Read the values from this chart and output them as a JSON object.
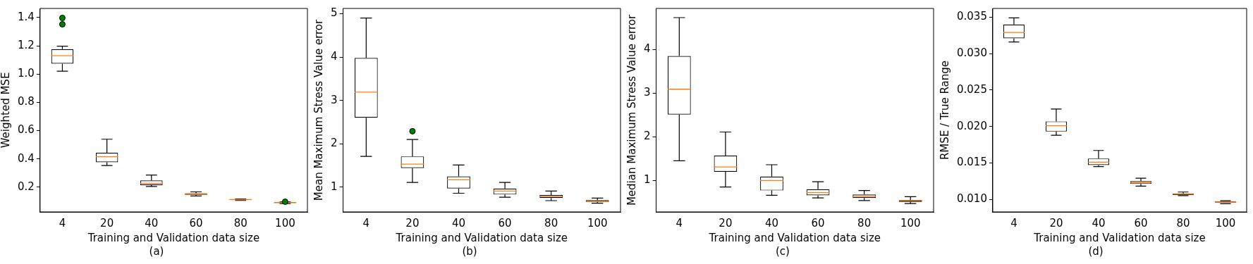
{
  "chart_data": [
    {
      "type": "box",
      "xlabel": "Training and Validation data size",
      "ylabel": "Weighted MSE",
      "annotations": [
        "(a)"
      ],
      "categories": [
        "4",
        "20",
        "40",
        "60",
        "80",
        "100"
      ],
      "ylim": [
        0.025,
        1.464
      ],
      "yticks": [
        {
          "value": 0.2,
          "label": "0.2"
        },
        {
          "value": 0.4,
          "label": "0.4"
        },
        {
          "value": 0.6,
          "label": "0.6"
        },
        {
          "value": 0.8,
          "label": "0.8"
        },
        {
          "value": 1.0,
          "label": "1.0"
        },
        {
          "value": 1.2,
          "label": "1.2"
        },
        {
          "value": 1.4,
          "label": "1.4"
        }
      ],
      "grid": false,
      "boxes": [
        {
          "low": 1.02,
          "q1": 1.073,
          "median": 1.13,
          "q3": 1.176,
          "high": 1.197,
          "outliers": [
            1.352,
            1.397
          ]
        },
        {
          "low": 0.353,
          "q1": 0.376,
          "median": 0.415,
          "q3": 0.443,
          "high": 0.539
        },
        {
          "low": 0.205,
          "q1": 0.214,
          "median": 0.227,
          "q3": 0.248,
          "high": 0.286
        },
        {
          "low": 0.138,
          "q1": 0.146,
          "median": 0.151,
          "q3": 0.157,
          "high": 0.167
        },
        {
          "low": 0.106,
          "q1": 0.108,
          "median": 0.113,
          "q3": 0.114,
          "high": 0.117
        },
        {
          "low": 0.084,
          "q1": 0.088,
          "median": 0.09,
          "q3": 0.094,
          "high": 0.095,
          "outliers": [
            0.097
          ]
        }
      ]
    },
    {
      "type": "box",
      "xlabel": "Training and Validation data size",
      "ylabel": "Mean Maximum Stress Value error",
      "annotations": [
        "(b)"
      ],
      "categories": [
        "4",
        "20",
        "40",
        "60",
        "80",
        "100"
      ],
      "ylim": [
        0.43,
        5.12
      ],
      "yticks": [
        1,
        2,
        3,
        4,
        5
      ],
      "grid": false,
      "boxes": [
        {
          "low": 1.71,
          "q1": 2.6,
          "median": 3.19,
          "q3": 3.98,
          "high": 4.9
        },
        {
          "low": 1.11,
          "q1": 1.44,
          "median": 1.53,
          "q3": 1.71,
          "high": 2.1,
          "outliers": [
            2.29
          ]
        },
        {
          "low": 0.86,
          "q1": 0.97,
          "median": 1.17,
          "q3": 1.25,
          "high": 1.51
        },
        {
          "low": 0.77,
          "q1": 0.83,
          "median": 0.91,
          "q3": 0.97,
          "high": 1.11
        },
        {
          "low": 0.69,
          "q1": 0.75,
          "median": 0.78,
          "q3": 0.82,
          "high": 0.91
        },
        {
          "low": 0.63,
          "q1": 0.66,
          "median": 0.67,
          "q3": 0.7,
          "high": 0.75
        }
      ]
    },
    {
      "type": "box",
      "xlabel": "Training and Validation data size",
      "ylabel": "Median Maximum Stress Value error",
      "annotations": [
        "(c)"
      ],
      "categories": [
        "4",
        "20",
        "40",
        "60",
        "80",
        "100"
      ],
      "ylim": [
        0.28,
        4.94
      ],
      "yticks": [
        1,
        2,
        3,
        4
      ],
      "grid": false,
      "boxes": [
        {
          "low": 1.45,
          "q1": 2.51,
          "median": 3.09,
          "q3": 3.85,
          "high": 4.73
        },
        {
          "low": 0.85,
          "q1": 1.2,
          "median": 1.31,
          "q3": 1.57,
          "high": 2.11
        },
        {
          "low": 0.66,
          "q1": 0.77,
          "median": 1.0,
          "q3": 1.09,
          "high": 1.36
        },
        {
          "low": 0.6,
          "q1": 0.66,
          "median": 0.72,
          "q3": 0.8,
          "high": 0.97
        },
        {
          "low": 0.54,
          "q1": 0.6,
          "median": 0.64,
          "q3": 0.68,
          "high": 0.77
        },
        {
          "low": 0.47,
          "q1": 0.51,
          "median": 0.54,
          "q3": 0.55,
          "high": 0.63
        }
      ]
    },
    {
      "type": "box",
      "xlabel": "Training and Validation data size",
      "ylabel": "RMSE / True Range",
      "annotations": [
        "(d)"
      ],
      "categories": [
        "4",
        "20",
        "40",
        "60",
        "80",
        "100"
      ],
      "ylim": [
        0.00827,
        0.0362
      ],
      "yticks": [
        {
          "value": 0.01,
          "label": "0.010"
        },
        {
          "value": 0.015,
          "label": "0.015"
        },
        {
          "value": 0.02,
          "label": "0.020"
        },
        {
          "value": 0.025,
          "label": "0.025"
        },
        {
          "value": 0.03,
          "label": "0.030"
        },
        {
          "value": 0.035,
          "label": "0.035"
        }
      ],
      "grid": false,
      "boxes": [
        {
          "low": 0.0316,
          "q1": 0.0321,
          "median": 0.0329,
          "q3": 0.034,
          "high": 0.0349
        },
        {
          "low": 0.0188,
          "q1": 0.0193,
          "median": 0.0201,
          "q3": 0.0207,
          "high": 0.0224
        },
        {
          "low": 0.0145,
          "q1": 0.0147,
          "median": 0.0151,
          "q3": 0.0156,
          "high": 0.0167
        },
        {
          "low": 0.0118,
          "q1": 0.0121,
          "median": 0.0123,
          "q3": 0.0125,
          "high": 0.0129
        },
        {
          "low": 0.0105,
          "q1": 0.0106,
          "median": 0.0107,
          "q3": 0.0108,
          "high": 0.011
        },
        {
          "low": 0.0094,
          "q1": 0.0095,
          "median": 0.0096,
          "q3": 0.0097,
          "high": 0.0098
        }
      ]
    }
  ]
}
